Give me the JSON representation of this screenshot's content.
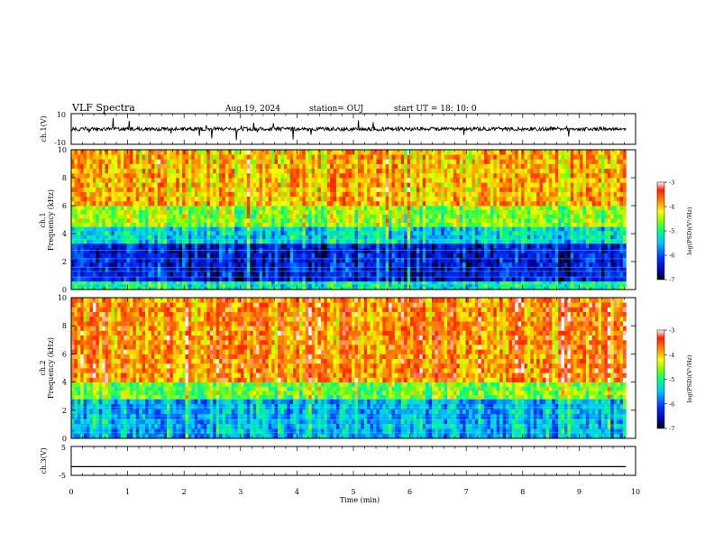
{
  "header": {
    "title": "VLF Spectra",
    "date": "Aug.19, 2024",
    "station": "station= OUJ",
    "start": "start  UT  =   18: 10: 0"
  },
  "colors": {
    "colormap": [
      "#000000",
      "#0000a0",
      "#0030ff",
      "#00c8ff",
      "#00ff80",
      "#80ff00",
      "#ffff00",
      "#ff9000",
      "#ff2000",
      "#ffffff"
    ],
    "trace": "#000000"
  },
  "chart_data": [
    {
      "type": "line",
      "name": "ch1-waveform",
      "ylabel": "ch.1(V)",
      "ylim": [
        -10,
        10
      ],
      "ytick_labels": [
        "10",
        "-10"
      ],
      "x_range_min": [
        0,
        9.83
      ],
      "baseline_v": 0,
      "amplitude_v": 3
    },
    {
      "type": "heatmap",
      "name": "ch1-spectrogram",
      "ylabel": "ch.1\nFrequency  (kHz)",
      "ylim": [
        0,
        10
      ],
      "ytick_labels": [
        "0",
        "2",
        "4",
        "6",
        "8",
        "10"
      ],
      "x_range_min": [
        0,
        9.83
      ],
      "colorbar": {
        "label": "log(PSD)(V²/Hz)",
        "range": [
          -7,
          -3
        ],
        "tick_labels": [
          "-3",
          "-4",
          "-5",
          "-6",
          "-7"
        ]
      },
      "band_log_psd": [
        {
          "f_khz": [
            0,
            0.6
          ],
          "log_psd": -5.2
        },
        {
          "f_khz": [
            0.6,
            3.3
          ],
          "log_psd": -6.4
        },
        {
          "f_khz": [
            3.3,
            4.5
          ],
          "log_psd": -5.4
        },
        {
          "f_khz": [
            4.5,
            6.0
          ],
          "log_psd": -4.6
        },
        {
          "f_khz": [
            6.0,
            10.0
          ],
          "log_psd": -4.0
        }
      ]
    },
    {
      "type": "heatmap",
      "name": "ch2-spectrogram",
      "ylabel": "ch.2\nFrequency  (kHz)",
      "ylim": [
        0,
        10
      ],
      "ytick_labels": [
        "0",
        "2",
        "4",
        "6",
        "8",
        "10"
      ],
      "x_range_min": [
        0,
        9.83
      ],
      "colorbar": {
        "label": "log(PSD)(V²/Hz)",
        "range": [
          -7,
          -3
        ],
        "tick_labels": [
          "-3",
          "-4",
          "-5",
          "-6",
          "-7"
        ]
      },
      "band_log_psd": [
        {
          "f_khz": [
            0,
            2.8
          ],
          "log_psd": -5.6
        },
        {
          "f_khz": [
            2.8,
            4.0
          ],
          "log_psd": -4.7
        },
        {
          "f_khz": [
            4.0,
            10.0
          ],
          "log_psd": -3.8
        }
      ]
    },
    {
      "type": "line",
      "name": "ch3-waveform",
      "ylabel": "ch.3(V)",
      "ylim": [
        -5,
        5
      ],
      "ytick_labels": [
        "5",
        "-5"
      ],
      "x_range_min": [
        0,
        9.83
      ],
      "constant_v": -2
    }
  ],
  "xaxis": {
    "label": "Time  (min)",
    "range": [
      0,
      10
    ],
    "tick_labels": [
      "0",
      "1",
      "2",
      "3",
      "4",
      "5",
      "6",
      "7",
      "8",
      "9",
      "10"
    ]
  }
}
